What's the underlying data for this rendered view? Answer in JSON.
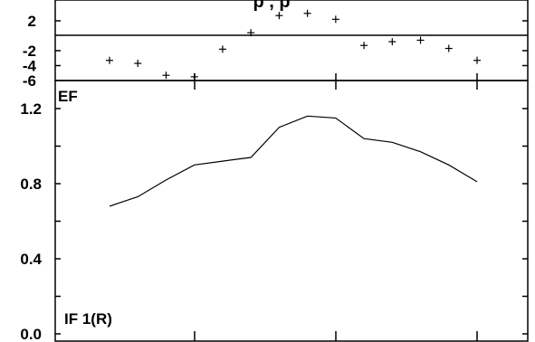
{
  "chart_data": [
    {
      "type": "scatter",
      "marker": "+",
      "ylim": [
        -6,
        3.5
      ],
      "yticks": [
        "2",
        "-2",
        "-4",
        "-6"
      ],
      "x": [
        1,
        2,
        3,
        4,
        5,
        6,
        7,
        8,
        9,
        10,
        11,
        12,
        13,
        14
      ],
      "values": [
        -3.3,
        -3.7,
        -5.3,
        -5.5,
        -1.8,
        0.4,
        2.7,
        3.0,
        2.2,
        -1.3,
        -0.8,
        -0.6,
        -1.7,
        -3.3
      ]
    },
    {
      "type": "line",
      "ylabel": "EF",
      "annotation": "IF 1(R)",
      "ylim": [
        -0.03,
        1.33
      ],
      "yticks": [
        "1.2",
        "0.8",
        "0.4",
        "0.0"
      ],
      "x": [
        1,
        2,
        3,
        4,
        5,
        6,
        7,
        8,
        9,
        10,
        11,
        12,
        13,
        14
      ],
      "values": [
        0.68,
        0.73,
        0.82,
        0.9,
        0.92,
        0.94,
        1.1,
        1.16,
        1.15,
        1.04,
        1.02,
        0.97,
        0.9,
        0.81
      ]
    }
  ],
  "title_fragment": "p                            ,                                        p"
}
